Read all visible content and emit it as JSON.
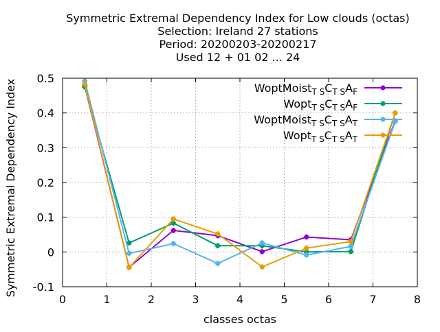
{
  "chart_data": {
    "type": "line",
    "title_lines": [
      "Symmetric Extremal Dependency Index  for Low clouds (octas)",
      "Selection: Ireland     27 stations",
      "Period: 20200203-20200217",
      "Used  12 + 01 02 ... 24"
    ],
    "xlabel": "classes octas",
    "ylabel": "Symmetric Extremal Dependency Index",
    "xlim": [
      0,
      8
    ],
    "ylim": [
      -0.1,
      0.5
    ],
    "xticks": [
      0,
      1,
      2,
      3,
      4,
      5,
      6,
      7,
      8
    ],
    "yticks": [
      -0.1,
      0,
      0.1,
      0.2,
      0.3,
      0.4,
      0.5
    ],
    "ytick_labels": [
      "-0.1",
      "0",
      "0.1",
      "0.2",
      "0.3",
      "0.4",
      "0.5"
    ],
    "grid": true,
    "legend_position": "top-right",
    "x": [
      0.5,
      1.5,
      2.5,
      3.5,
      4.5,
      5.5,
      6.5,
      7.5
    ],
    "series": [
      {
        "name": "WoptMoist",
        "sub1": "T S",
        "mid": "C",
        "sub2": "T S",
        "tail": "A",
        "sub3": "F",
        "color": "#9400d3",
        "values": [
          0.478,
          -0.044,
          0.062,
          0.047,
          0.001,
          0.043,
          0.035,
          0.377
        ]
      },
      {
        "name": "Wopt",
        "sub1": "T S",
        "mid": "C",
        "sub2": "T S",
        "tail": "A",
        "sub3": "F",
        "color": "#009e73",
        "values": [
          0.475,
          0.026,
          0.083,
          0.018,
          0.018,
          0.0,
          0.001,
          0.4
        ]
      },
      {
        "name": "WoptMoist",
        "sub1": "T S",
        "mid": "C",
        "sub2": "T S",
        "tail": "A",
        "sub3": "T",
        "color": "#56b4e9",
        "values": [
          0.492,
          -0.004,
          0.024,
          -0.033,
          0.026,
          -0.009,
          0.016,
          0.375
        ]
      },
      {
        "name": "Wopt",
        "sub1": "T S",
        "mid": "C",
        "sub2": "T S",
        "tail": "A",
        "sub3": "T",
        "color": "#e69f00",
        "values": [
          0.483,
          -0.045,
          0.095,
          0.052,
          -0.043,
          0.011,
          0.03,
          0.4
        ]
      }
    ]
  }
}
